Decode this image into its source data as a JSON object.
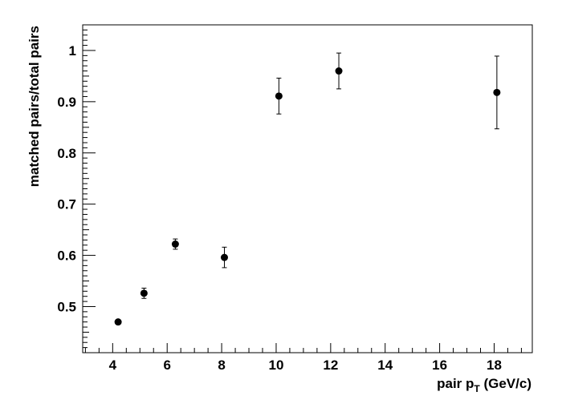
{
  "chart_data": {
    "type": "scatter",
    "xlabel_main": "pair p",
    "xlabel_sub": "T",
    "xlabel_unit": " (GeV/c)",
    "ylabel": "matched pairs/total pairs",
    "xlim": [
      2.9,
      19.4
    ],
    "ylim": [
      0.41,
      1.05
    ],
    "xticks": [
      4,
      6,
      8,
      10,
      12,
      14,
      16,
      18
    ],
    "yticks": [
      0.5,
      0.6,
      0.7,
      0.8,
      0.9,
      1
    ],
    "ytick_labels": [
      "0.5",
      "0.6",
      "0.7",
      "0.8",
      "0.9",
      "1"
    ],
    "grid": false,
    "points": [
      {
        "x": 4.2,
        "y": 0.47,
        "err": 0.004
      },
      {
        "x": 5.15,
        "y": 0.526,
        "err": 0.01
      },
      {
        "x": 6.3,
        "y": 0.622,
        "err": 0.01
      },
      {
        "x": 8.1,
        "y": 0.596,
        "err": 0.02
      },
      {
        "x": 10.1,
        "y": 0.911,
        "err": 0.035
      },
      {
        "x": 12.3,
        "y": 0.96,
        "err": 0.035
      },
      {
        "x": 18.1,
        "y": 0.918,
        "err": 0.071
      }
    ]
  }
}
